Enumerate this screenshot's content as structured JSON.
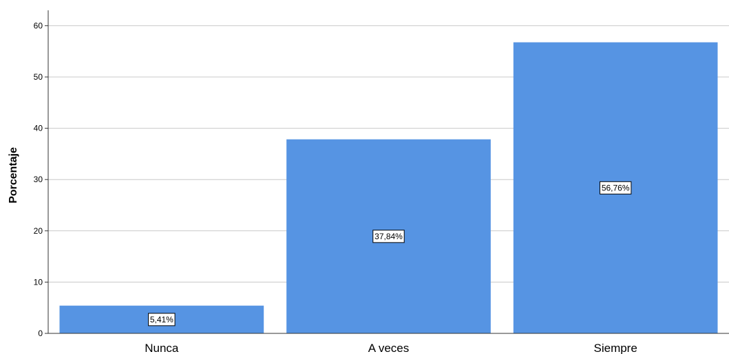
{
  "chart_data": {
    "type": "bar",
    "categories": [
      "Nunca",
      "A veces",
      "Siempre"
    ],
    "values": [
      5.41,
      37.84,
      56.76
    ],
    "data_labels": [
      "5,41%",
      "37,84%",
      "56,76%"
    ],
    "ylabel": "Porcentaje",
    "ylim": [
      0,
      63
    ],
    "yticks": [
      0,
      10,
      20,
      30,
      40,
      50,
      60
    ],
    "grid": true,
    "bar_color": "#5694e3"
  }
}
